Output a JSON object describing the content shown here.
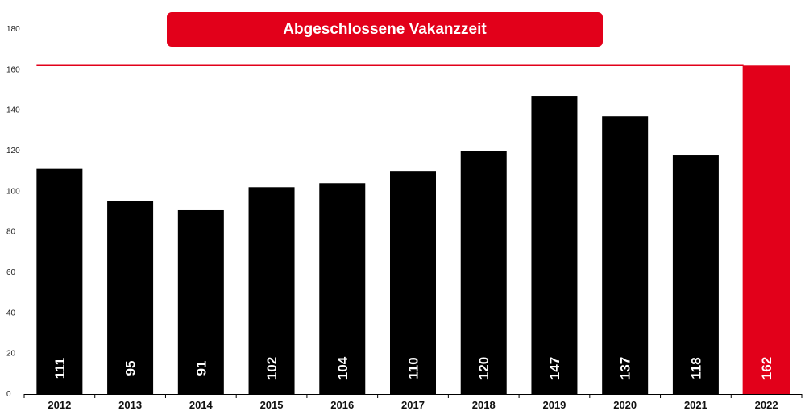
{
  "chart_data": {
    "type": "bar",
    "title": "Abgeschlossene Vakanzzeit",
    "categories": [
      "2012",
      "2013",
      "2014",
      "2015",
      "2016",
      "2017",
      "2018",
      "2019",
      "2020",
      "2021",
      "2022"
    ],
    "values": [
      111,
      95,
      91,
      102,
      104,
      110,
      120,
      147,
      137,
      118,
      162
    ],
    "value_labels": [
      "111",
      "95",
      "91",
      "102",
      "104",
      "110",
      "120",
      "147",
      "137",
      "118",
      "162"
    ],
    "ylim": [
      0,
      180
    ],
    "yticks": [
      "0",
      "20",
      "40",
      "60",
      "80",
      "100",
      "120",
      "140",
      "160",
      "180"
    ],
    "xlabel": "",
    "ylabel": "",
    "grid": false,
    "reference_line": 162,
    "highlight_category": "2022",
    "colors": {
      "bar": "#000000",
      "highlight": "#e2001a",
      "reference_line": "#e2001a",
      "label": "#ffffff"
    }
  }
}
